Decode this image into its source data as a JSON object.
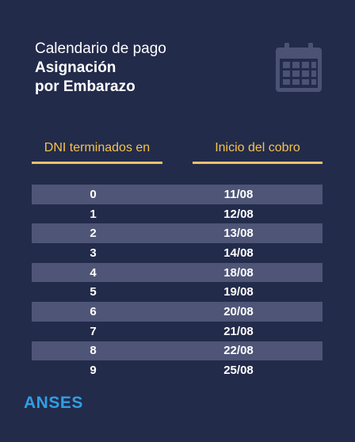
{
  "header": {
    "subtitle": "Calendario de pago",
    "title_line1": "Asignación",
    "title_line2": "por Embarazo"
  },
  "icons": {
    "calendar": "calendar-icon"
  },
  "table": {
    "col_dni": "DNI terminados en",
    "col_date": "Inicio del cobro",
    "rows": [
      {
        "dni": "0",
        "date": "11/08"
      },
      {
        "dni": "1",
        "date": "12/08"
      },
      {
        "dni": "2",
        "date": "13/08"
      },
      {
        "dni": "3",
        "date": "14/08"
      },
      {
        "dni": "4",
        "date": "18/08"
      },
      {
        "dni": "5",
        "date": "19/08"
      },
      {
        "dni": "6",
        "date": "20/08"
      },
      {
        "dni": "7",
        "date": "21/08"
      },
      {
        "dni": "8",
        "date": "22/08"
      },
      {
        "dni": "9",
        "date": "25/08"
      }
    ]
  },
  "brand": "ANSES",
  "colors": {
    "background": "#232b4b",
    "accent": "#f5c34a",
    "row_shade": "#4e5577",
    "brand": "#2f9fe3"
  }
}
